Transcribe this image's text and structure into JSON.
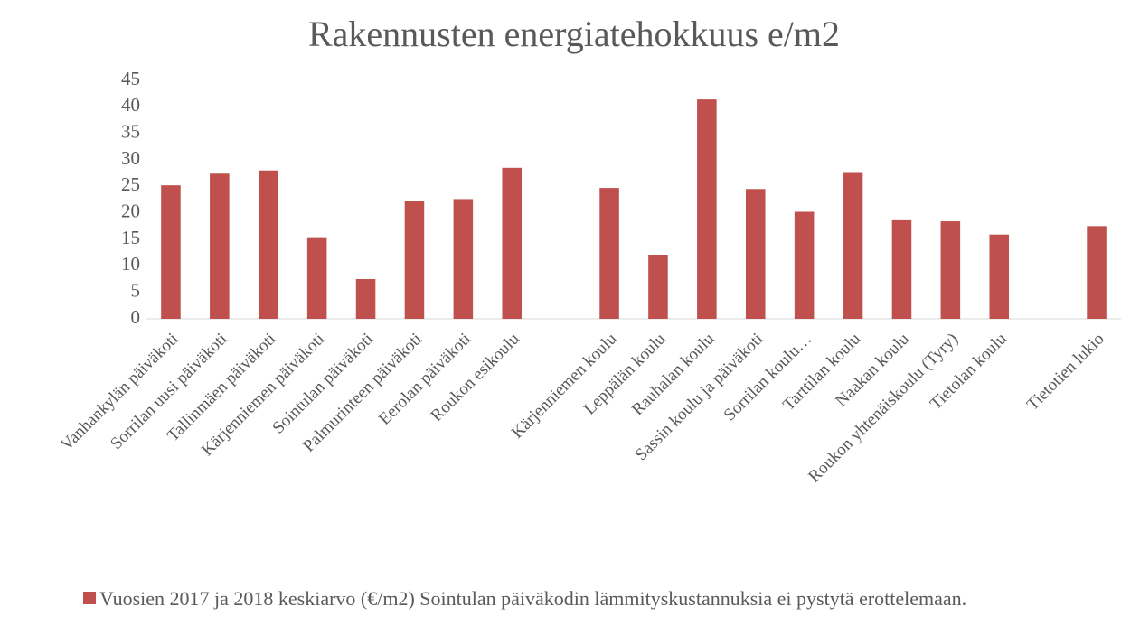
{
  "chart_data": {
    "type": "bar",
    "title": "Rakennusten energiatehokkuus e/m2",
    "categories": [
      "Vanhankylän päiväkoti",
      "Sorrilan uusi päiväkoti",
      "Tallinmäen päiväkoti",
      "Kärjenniemen päiväkoti",
      "Sointulan päiväkoti",
      "Palmurinteen päiväkoti",
      "Eerolan päiväkoti",
      "Roukon esikoulu",
      null,
      "Kärjenniemen koulu",
      "Leppälän koulu",
      "Rauhalan koulu",
      "Sassin koulu ja päiväkoti",
      "Sorrilan koulu…",
      "Tarttilan koulu",
      "Naakan koulu",
      "Roukon yhtenäiskoulu (Tyry)",
      "Tietolan koulu",
      null,
      "Tietotien lukio"
    ],
    "series": [
      {
        "name": "Vuosien 2017 ja 2018 keskiarvo (€/m2) Sointulan päiväkodin lämmityskustannuksia ei pystytä erottelemaan.",
        "color": "#c0504d",
        "values": [
          25.2,
          27.4,
          28,
          15.4,
          7.5,
          22.3,
          22.6,
          28.5,
          null,
          24.7,
          12.1,
          41.4,
          24.5,
          20.2,
          27.7,
          18.6,
          18.4,
          15.9,
          null,
          17.5
        ]
      }
    ],
    "ylim": [
      0,
      45
    ],
    "yticks": [
      0,
      5,
      10,
      15,
      20,
      25,
      30,
      35,
      40,
      45
    ],
    "grid": false,
    "legend": "bottom"
  }
}
